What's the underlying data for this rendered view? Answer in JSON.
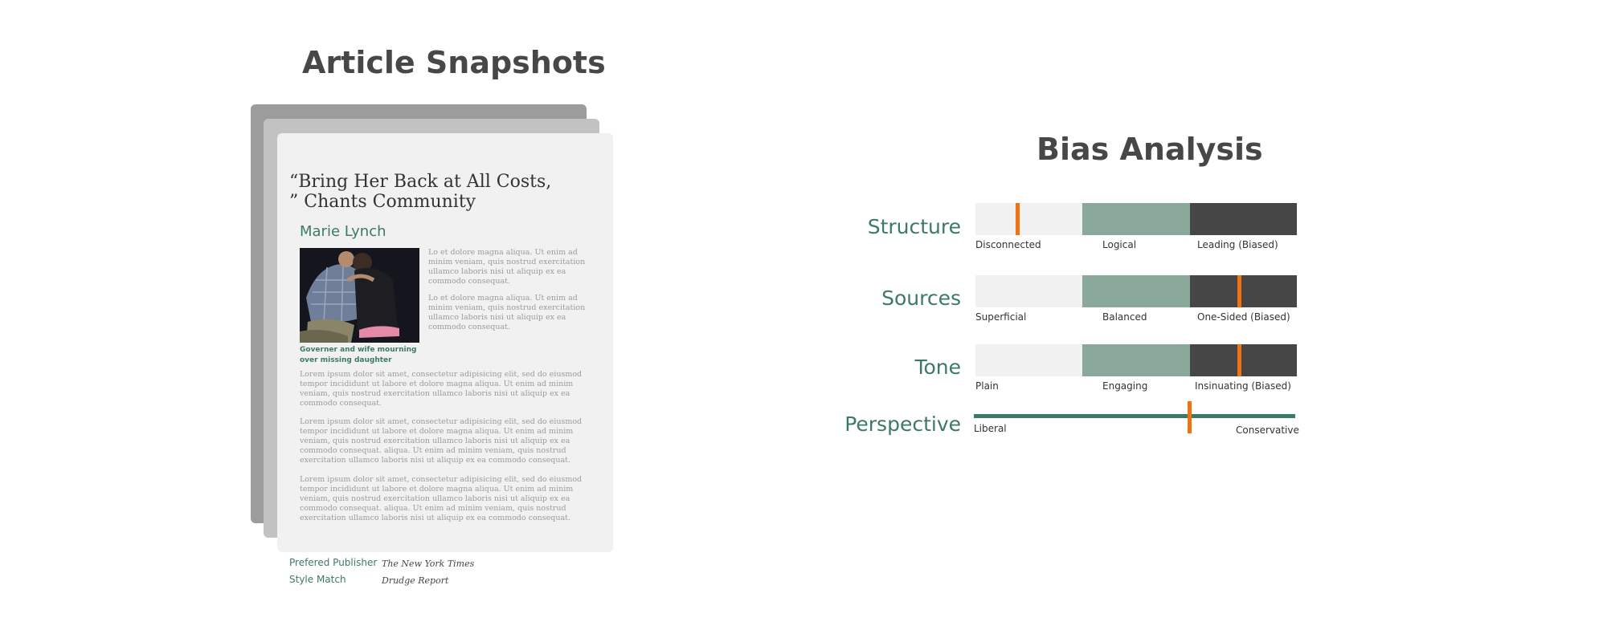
{
  "snapshots": {
    "title": "Article Snapshots",
    "article": {
      "headline": "“Bring Her Back at All Costs, ” Chants Community",
      "author": "Marie Lynch",
      "caption": "Governer and wife mourning over missing daughter",
      "side_paragraphs": [
        "Lo et dolore magna aliqua. Ut enim ad minim veniam, quis nostrud exercitation ullamco laboris nisi ut aliquip ex ea commodo consequat.",
        "Lo et dolore magna aliqua. Ut enim ad minim veniam, quis nostrud exercitation ullamco laboris nisi ut aliquip ex ea commodo consequat."
      ],
      "body_paragraphs": [
        "Lorem ipsum dolor sit amet, consectetur adipisicing elit, sed do eiusmod tempor incididunt ut labore et dolore magna aliqua. Ut enim ad minim veniam, quis nostrud exercitation ullamco laboris nisi ut aliquip ex ea commodo consequat.",
        "Lorem ipsum dolor sit amet, consectetur adipisicing elit, sed do eiusmod tempor incididunt ut labore et dolore magna aliqua. Ut enim ad minim veniam, quis nostrud exercitation ullamco laboris nisi ut aliquip ex ea commodo consequat. aliqua. Ut enim ad minim veniam, quis nostrud exercitation ullamco laboris nisi ut aliquip ex ea commodo consequat.",
        "Lorem ipsum dolor sit amet, consectetur adipisicing elit, sed do eiusmod tempor incididunt ut labore et dolore magna aliqua. Ut enim ad minim veniam, quis nostrud exercitation ullamco laboris nisi ut aliquip ex ea commodo consequat. aliqua. Ut enim ad minim veniam, quis nostrud exercitation ullamco laboris nisi ut aliquip ex ea commodo consequat."
      ]
    },
    "meta": {
      "preferred_publisher_label": "Prefered Publisher",
      "preferred_publisher_value": "The New York Times",
      "style_match_label": "Style Match",
      "style_match_value": "Drudge Report"
    }
  },
  "bias": {
    "title": "Bias Analysis",
    "colors": {
      "accent": "#3c7a63",
      "marker": "#f07313",
      "light": "#f1f1f1",
      "mid": "#8ba99a",
      "dark": "#464646"
    },
    "rows": [
      {
        "label": "Structure",
        "levels": [
          "Disconnected",
          "Logical",
          "Leading (Biased)"
        ],
        "marker": 0.13
      },
      {
        "label": "Sources",
        "levels": [
          "Superficial",
          "Balanced",
          "One-Sided (Biased)"
        ],
        "marker": 0.82
      },
      {
        "label": "Tone",
        "levels": [
          "Plain",
          "Engaging",
          "Insinuating (Biased)"
        ],
        "marker": 0.82
      }
    ],
    "perspective": {
      "label": "Perspective",
      "left": "Liberal",
      "right": "Conservative",
      "marker": 0.67
    }
  }
}
